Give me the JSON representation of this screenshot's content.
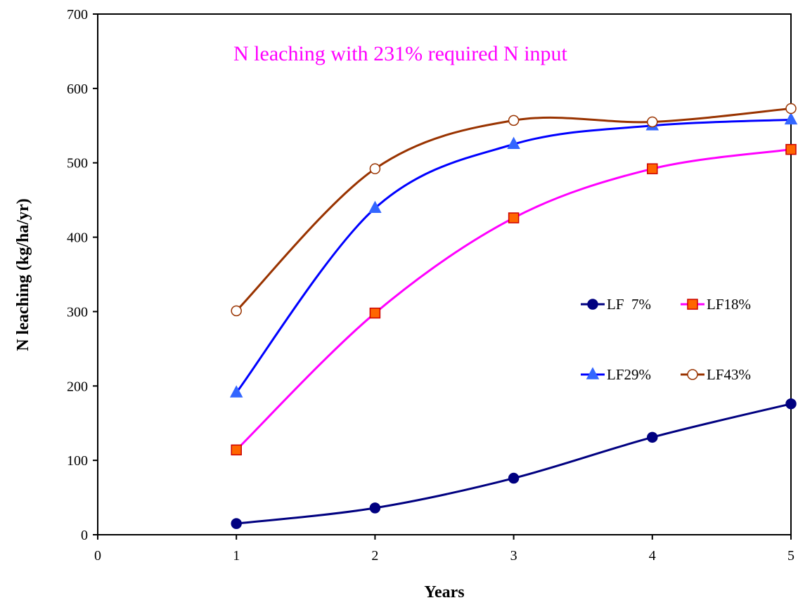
{
  "chart_data": {
    "type": "line",
    "title": "N leaching with 231% required N input",
    "title_color": "#ff00ff",
    "xlabel": "Years",
    "ylabel": "N leaching (kg/ha/yr)",
    "xlim": [
      0,
      5
    ],
    "ylim": [
      0,
      700
    ],
    "x_ticks": [
      0,
      1,
      2,
      3,
      4,
      5
    ],
    "y_ticks": [
      0,
      100,
      200,
      300,
      400,
      500,
      600,
      700
    ],
    "grid": false,
    "legend_position": "right-middle",
    "x": [
      1,
      2,
      3,
      4,
      5
    ],
    "series": [
      {
        "name": "LF  7%",
        "values": [
          15,
          36,
          76,
          131,
          176
        ],
        "line_color": "#000080",
        "marker": "circle",
        "marker_fill": "#000080",
        "marker_stroke": "#000080"
      },
      {
        "name": "LF18%",
        "values": [
          114,
          298,
          426,
          492,
          518
        ],
        "line_color": "#ff00ff",
        "marker": "square",
        "marker_fill": "#ff6600",
        "marker_stroke": "#cc0000"
      },
      {
        "name": "LF29%",
        "values": [
          191,
          439,
          525,
          550,
          558
        ],
        "line_color": "#0000ff",
        "marker": "triangle",
        "marker_fill": "#3366ff",
        "marker_stroke": "#3366ff"
      },
      {
        "name": "LF43%",
        "values": [
          301,
          492,
          557,
          555,
          573
        ],
        "line_color": "#993300",
        "marker": "circle-open",
        "marker_fill": "#ffffff",
        "marker_stroke": "#993300"
      }
    ]
  }
}
